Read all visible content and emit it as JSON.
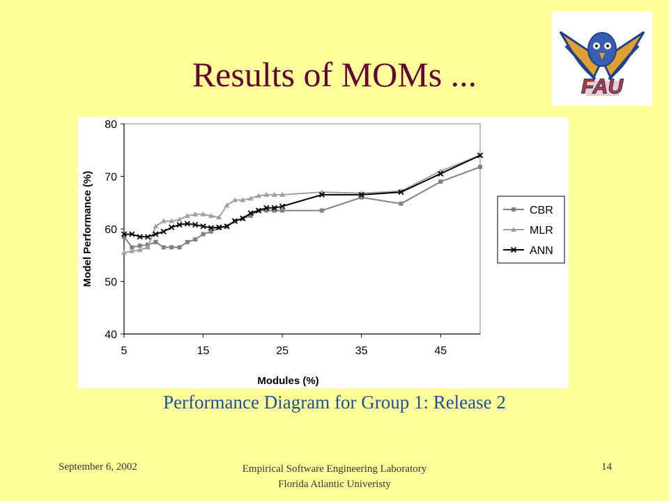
{
  "slide": {
    "title": "Results of MOMs ...",
    "caption": "Performance Diagram for Group 1: Release 2",
    "footer_left": "September 6, 2002",
    "footer_center_line1": "Empirical Software Engineering Laboratory",
    "footer_center_line2": "Florida Atlantic Univeristy",
    "page_number": "14",
    "logo_text": "FAU",
    "colors": {
      "background": "#ffff99",
      "title": "#660033",
      "caption": "#1f4e9a"
    }
  },
  "chart_data": {
    "type": "line",
    "xlabel": "Modules (%)",
    "ylabel": "Model Performance (%)",
    "xlim": [
      5,
      50
    ],
    "ylim": [
      40,
      80
    ],
    "xticks": [
      5,
      15,
      25,
      35,
      45
    ],
    "yticks": [
      40,
      50,
      60,
      70,
      80
    ],
    "grid": false,
    "legend_position": "right",
    "series": [
      {
        "name": "CBR",
        "marker": "square",
        "color": "#808080",
        "x": [
          5,
          6,
          7,
          8,
          9,
          10,
          11,
          12,
          13,
          14,
          15,
          16,
          17,
          18,
          19,
          20,
          21,
          22,
          23,
          24,
          25,
          30,
          35,
          40,
          45,
          50
        ],
        "y": [
          58.5,
          56.5,
          56.8,
          57,
          57.5,
          56.5,
          56.5,
          56.5,
          57.5,
          58,
          59,
          59.5,
          60.2,
          60.5,
          61.5,
          62,
          62.5,
          63.5,
          63.5,
          63.5,
          63.5,
          63.5,
          66,
          64.8,
          69,
          71.8
        ]
      },
      {
        "name": "MLR",
        "marker": "triangle",
        "color": "#a0a0a0",
        "x": [
          5,
          6,
          7,
          8,
          9,
          10,
          11,
          12,
          13,
          14,
          15,
          16,
          17,
          18,
          19,
          20,
          21,
          22,
          23,
          24,
          25,
          30,
          35,
          40,
          45,
          50
        ],
        "y": [
          55.5,
          55.8,
          56,
          56.5,
          60.5,
          61.5,
          61.5,
          61.8,
          62.5,
          62.8,
          62.8,
          62.5,
          62.2,
          64.5,
          65.5,
          65.5,
          65.8,
          66.3,
          66.5,
          66.5,
          66.5,
          67,
          66.8,
          67.2,
          71,
          74
        ]
      },
      {
        "name": "ANN",
        "marker": "x",
        "color": "#000000",
        "x": [
          5,
          6,
          7,
          8,
          9,
          10,
          11,
          12,
          13,
          14,
          15,
          16,
          17,
          18,
          19,
          20,
          21,
          22,
          23,
          24,
          25,
          30,
          35,
          40,
          45,
          50
        ],
        "y": [
          59,
          59,
          58.5,
          58.5,
          59,
          59.5,
          60.3,
          60.8,
          61,
          60.8,
          60.5,
          60.2,
          60.3,
          60.5,
          61.5,
          62,
          63,
          63.5,
          64,
          64,
          64.3,
          66.5,
          66.5,
          67,
          70.5,
          74
        ]
      }
    ]
  }
}
